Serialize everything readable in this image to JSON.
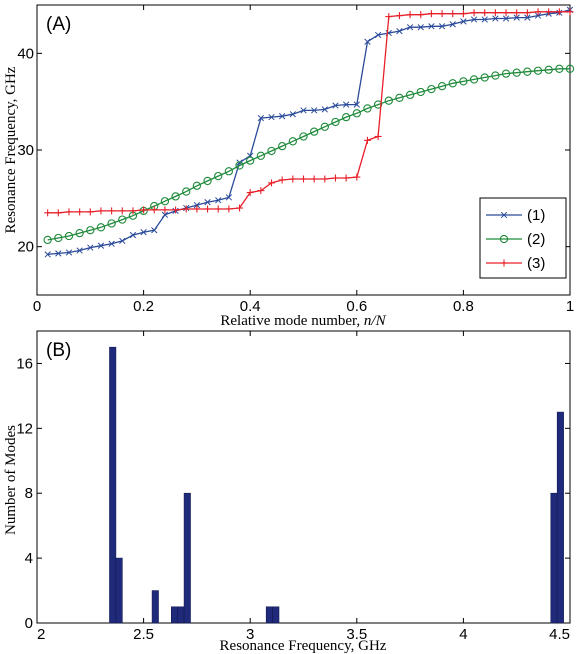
{
  "chart_data": [
    {
      "type": "line",
      "panel_label": "(A)",
      "xlabel_text": "Relative mode number, ",
      "xlabel_math": "n/N",
      "ylabel": "Resonance Frequency, GHz",
      "xlim": [
        0,
        1
      ],
      "ylim": [
        15,
        45
      ],
      "xticks": [
        0,
        0.2,
        0.4,
        0.6,
        0.8,
        1
      ],
      "xtick_labels": [
        "0",
        "0.2",
        "0.4",
        "0.6",
        "0.8",
        "1"
      ],
      "yticks": [
        20,
        30,
        40
      ],
      "ytick_labels": [
        "20",
        "30",
        "40"
      ],
      "legend_position": "right",
      "series": [
        {
          "name": "(1)",
          "color": "#2a4a9a",
          "marker": "x",
          "x": [
            0.02,
            0.04,
            0.06,
            0.08,
            0.1,
            0.12,
            0.14,
            0.16,
            0.18,
            0.2,
            0.22,
            0.24,
            0.26,
            0.28,
            0.3,
            0.32,
            0.34,
            0.36,
            0.38,
            0.4,
            0.42,
            0.44,
            0.46,
            0.48,
            0.5,
            0.52,
            0.54,
            0.56,
            0.58,
            0.6,
            0.62,
            0.64,
            0.66,
            0.68,
            0.7,
            0.72,
            0.74,
            0.76,
            0.78,
            0.8,
            0.82,
            0.84,
            0.86,
            0.88,
            0.9,
            0.92,
            0.94,
            0.96,
            0.98,
            1.0
          ],
          "y": [
            19.2,
            19.3,
            19.4,
            19.6,
            19.9,
            20.1,
            20.3,
            20.6,
            21.2,
            21.5,
            21.7,
            23.3,
            23.7,
            24.0,
            24.3,
            24.6,
            24.8,
            25.1,
            28.7,
            29.4,
            33.3,
            33.4,
            33.5,
            33.7,
            34.1,
            34.1,
            34.2,
            34.6,
            34.7,
            34.7,
            41.2,
            41.9,
            42.1,
            42.3,
            42.7,
            42.7,
            42.8,
            42.8,
            43.0,
            43.3,
            43.5,
            43.5,
            43.6,
            43.6,
            43.7,
            43.7,
            43.9,
            44.1,
            44.2,
            44.5
          ]
        },
        {
          "name": "(2)",
          "color": "#1e8a3a",
          "marker": "o",
          "x": [
            0.02,
            0.04,
            0.06,
            0.08,
            0.1,
            0.12,
            0.14,
            0.16,
            0.18,
            0.2,
            0.22,
            0.24,
            0.26,
            0.28,
            0.3,
            0.32,
            0.34,
            0.36,
            0.38,
            0.4,
            0.42,
            0.44,
            0.46,
            0.48,
            0.5,
            0.52,
            0.54,
            0.56,
            0.58,
            0.6,
            0.62,
            0.64,
            0.66,
            0.68,
            0.7,
            0.72,
            0.74,
            0.76,
            0.78,
            0.8,
            0.82,
            0.84,
            0.86,
            0.88,
            0.9,
            0.92,
            0.94,
            0.96,
            0.98,
            1.0
          ],
          "y": [
            20.7,
            20.9,
            21.1,
            21.4,
            21.7,
            22.0,
            22.4,
            22.8,
            23.2,
            23.7,
            24.2,
            24.7,
            25.2,
            25.7,
            26.3,
            26.8,
            27.3,
            27.8,
            28.4,
            28.9,
            29.4,
            29.9,
            30.4,
            30.9,
            31.4,
            31.9,
            32.4,
            32.9,
            33.4,
            33.8,
            34.3,
            34.7,
            35.1,
            35.4,
            35.7,
            36.0,
            36.3,
            36.6,
            36.9,
            37.1,
            37.3,
            37.5,
            37.7,
            37.9,
            38.0,
            38.1,
            38.2,
            38.3,
            38.4,
            38.4
          ]
        },
        {
          "name": "(3)",
          "color": "#e8202a",
          "marker": "+",
          "x": [
            0.02,
            0.04,
            0.06,
            0.08,
            0.1,
            0.12,
            0.14,
            0.16,
            0.18,
            0.2,
            0.22,
            0.24,
            0.26,
            0.28,
            0.3,
            0.32,
            0.34,
            0.36,
            0.38,
            0.4,
            0.42,
            0.44,
            0.46,
            0.48,
            0.5,
            0.52,
            0.54,
            0.56,
            0.58,
            0.6,
            0.62,
            0.64,
            0.66,
            0.68,
            0.7,
            0.72,
            0.74,
            0.76,
            0.78,
            0.8,
            0.82,
            0.84,
            0.86,
            0.88,
            0.9,
            0.92,
            0.94,
            0.96,
            0.98,
            1.0
          ],
          "y": [
            23.5,
            23.5,
            23.6,
            23.6,
            23.6,
            23.7,
            23.7,
            23.7,
            23.7,
            23.8,
            23.8,
            23.8,
            23.8,
            23.9,
            23.9,
            23.9,
            23.9,
            23.9,
            24.0,
            25.6,
            25.8,
            26.6,
            26.9,
            27.0,
            27.0,
            27.0,
            27.0,
            27.1,
            27.1,
            27.2,
            31.0,
            31.4,
            43.8,
            43.9,
            44.0,
            44.0,
            44.1,
            44.1,
            44.1,
            44.1,
            44.2,
            44.2,
            44.2,
            44.2,
            44.2,
            44.2,
            44.3,
            44.3,
            44.3,
            44.3
          ]
        }
      ]
    },
    {
      "type": "bar",
      "panel_label": "(B)",
      "xlabel": "Resonance Frequency, GHz",
      "ylabel": "Number of Modes",
      "xlim": [
        2,
        4.5
      ],
      "ylim": [
        0,
        18
      ],
      "xticks": [
        2,
        2.5,
        3,
        3.5,
        4,
        4.5
      ],
      "xtick_labels": [
        "2",
        "2.5",
        "3",
        "3.5",
        "4",
        "4.5"
      ],
      "yticks": [
        0,
        4,
        8,
        12,
        16
      ],
      "ytick_labels": [
        "0",
        "4",
        "8",
        "12",
        "16"
      ],
      "bar_color": "#1f2b7a",
      "bin_width": 0.03,
      "bins": [
        2.355,
        2.385,
        2.555,
        2.645,
        2.675,
        2.705,
        3.09,
        3.12,
        4.425,
        4.455
      ],
      "values": [
        17,
        4,
        2,
        1,
        1,
        8,
        1,
        1,
        8,
        13
      ]
    }
  ]
}
